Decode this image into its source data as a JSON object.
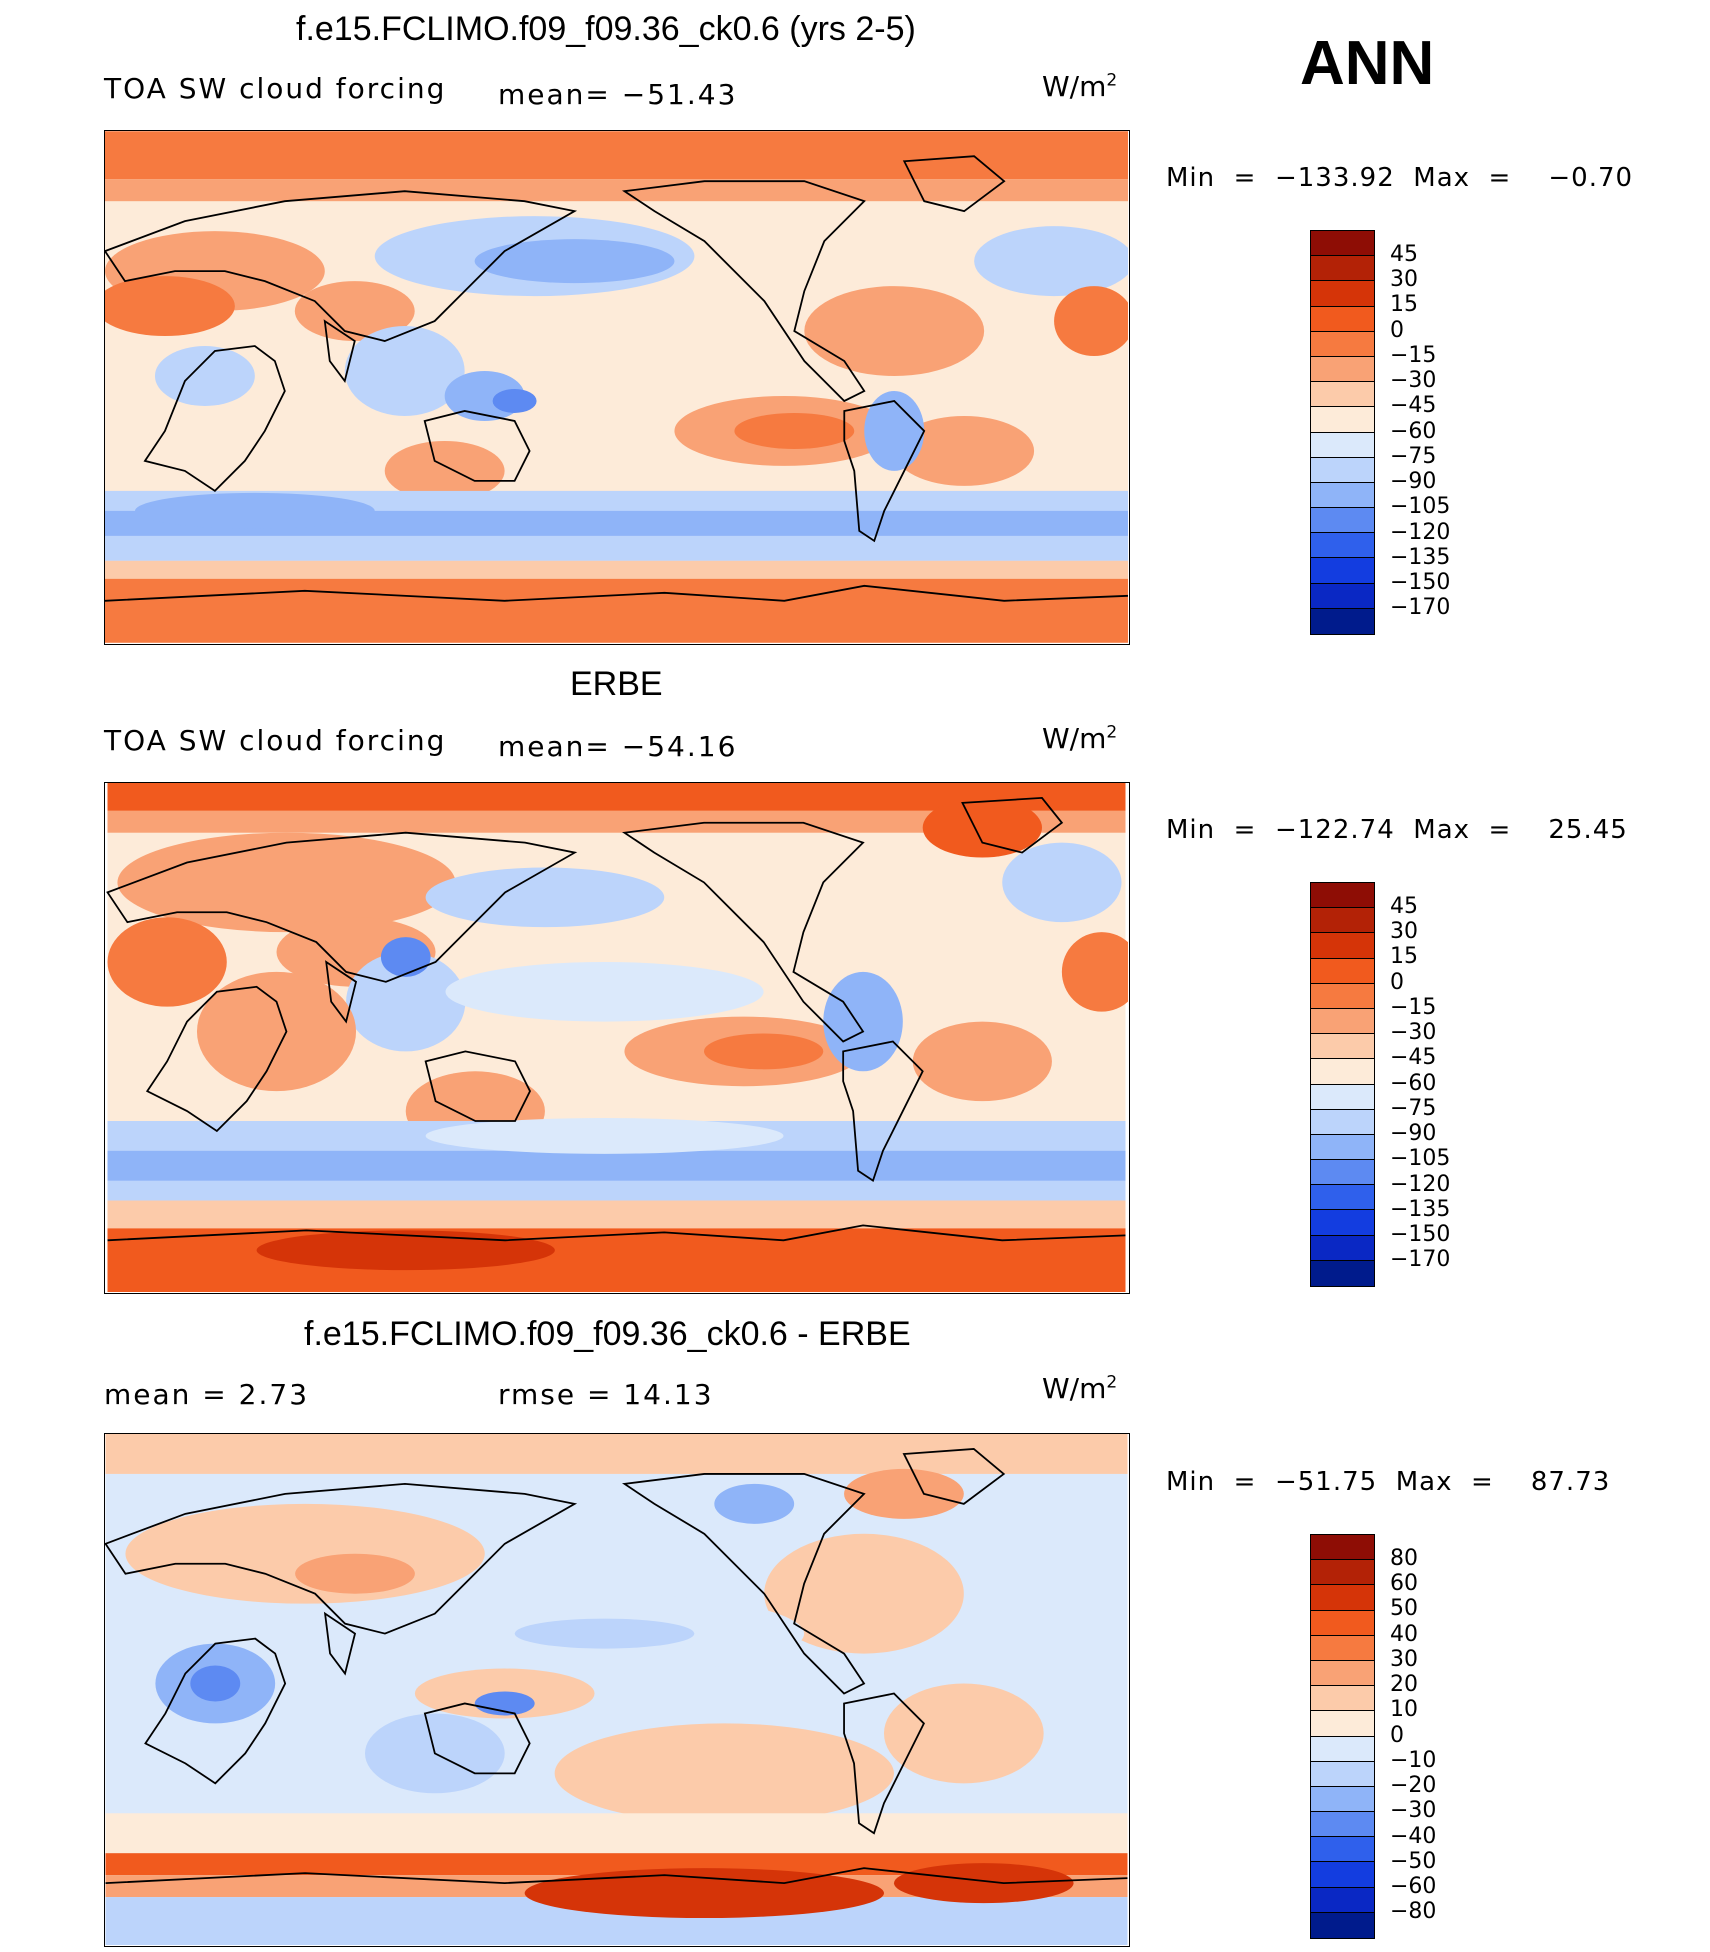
{
  "season": "ANN",
  "units_base": "W/m",
  "units_exp": "2",
  "panels": [
    {
      "title": "f.e15.FCLIMO.f09_f09.36_ck0.6 (yrs 2-5)",
      "variable": "TOA SW cloud forcing",
      "stat1": "mean= −51.43",
      "stat2": "",
      "minmax": "Min  =  −133.92  Max  =    −0.70",
      "palette": "abs",
      "levels": [
        "45",
        "30",
        "15",
        "0",
        "−15",
        "−30",
        "−45",
        "−60",
        "−75",
        "−90",
        "−105",
        "−120",
        "−135",
        "−150",
        "−170"
      ]
    },
    {
      "title": "ERBE",
      "variable": "TOA SW cloud forcing",
      "stat1": "mean= −54.16",
      "stat2": "",
      "minmax": "Min  =  −122.74  Max  =    25.45",
      "palette": "abs",
      "levels": [
        "45",
        "30",
        "15",
        "0",
        "−15",
        "−30",
        "−45",
        "−60",
        "−75",
        "−90",
        "−105",
        "−120",
        "−135",
        "−150",
        "−170"
      ]
    },
    {
      "title": "f.e15.FCLIMO.f09_f09.36_ck0.6 - ERBE",
      "variable": "",
      "stat1": "mean  =     2.73",
      "stat2": "rmse  =    14.13",
      "minmax": "Min  =  −51.75  Max  =    87.73",
      "palette": "diff",
      "levels": [
        "80",
        "60",
        "50",
        "40",
        "30",
        "20",
        "10",
        "0",
        "−10",
        "−20",
        "−30",
        "−40",
        "−50",
        "−60",
        "−80"
      ]
    }
  ],
  "colors": {
    "abs": [
      "#8e0d05",
      "#b32206",
      "#d53408",
      "#f15a1e",
      "#f67a40",
      "#f9a275",
      "#fccbaa",
      "#fdebd9",
      "#dbe9fb",
      "#bcd4fb",
      "#8fb4f8",
      "#5d8af2",
      "#2f60ec",
      "#133de0",
      "#0a28c4",
      "#001b8c"
    ],
    "diff": [
      "#8e0d05",
      "#b32206",
      "#d53408",
      "#f15a1e",
      "#f67a40",
      "#f9a275",
      "#fccbaa",
      "#fdebd9",
      "#dbe9fb",
      "#bcd4fb",
      "#8fb4f8",
      "#5d8af2",
      "#2f60ec",
      "#133de0",
      "#0a28c4",
      "#001b8c"
    ]
  }
}
